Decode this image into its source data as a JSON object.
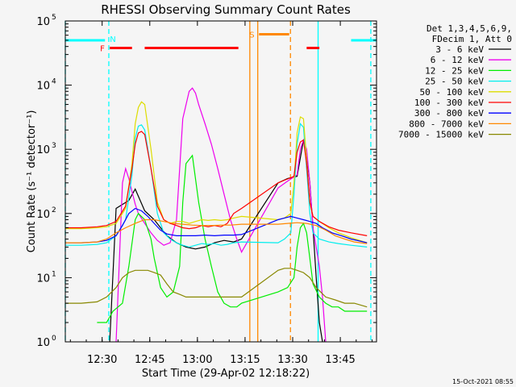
{
  "chart_data": {
    "type": "line",
    "title": "RHESSI Observing Summary Count Rates",
    "xlabel": "Start Time (29-Apr-02 12:18:22)",
    "ylabel": "Count Rate (s⁻¹ detector⁻¹)",
    "x_unit": "minutes after 12:18:22",
    "xlim": [
      0,
      98
    ],
    "ylim": [
      1,
      100000
    ],
    "y_scale": "log",
    "x_ticks": [
      {
        "label": "12:30",
        "t": 11.6
      },
      {
        "label": "12:45",
        "t": 26.6
      },
      {
        "label": "13:00",
        "t": 41.6
      },
      {
        "label": "13:15",
        "t": 56.6
      },
      {
        "label": "13:30",
        "t": 71.6
      },
      {
        "label": "13:45",
        "t": 86.6
      }
    ],
    "y_ticks": [
      {
        "mant": "10",
        "exp": "0",
        "v": 1
      },
      {
        "mant": "10",
        "exp": "1",
        "v": 10
      },
      {
        "mant": "10",
        "exp": "2",
        "v": 100
      },
      {
        "mant": "10",
        "exp": "3",
        "v": 1000
      },
      {
        "mant": "10",
        "exp": "4",
        "v": 10000
      },
      {
        "mant": "10",
        "exp": "5",
        "v": 100000
      }
    ],
    "legend_header": [
      "Det 1,3,4,5,6,9,",
      "FDecim 1, Att 0"
    ],
    "legend_position": "right",
    "series": [
      {
        "name": "3 - 6 keV",
        "color": "#000000",
        "t": [
          0,
          10,
          14,
          16,
          20,
          22,
          25,
          28,
          30,
          32,
          35,
          38,
          41,
          44,
          47,
          50,
          53,
          55.5,
          67,
          70,
          73,
          75,
          76,
          77,
          78,
          79,
          80,
          81,
          82
        ],
        "v": [
          null,
          null,
          1,
          120,
          160,
          240,
          110,
          80,
          60,
          45,
          35,
          30,
          28,
          30,
          35,
          38,
          36,
          40,
          300,
          350,
          380,
          1400,
          800,
          300,
          60,
          10,
          2,
          1,
          null
        ]
      },
      {
        "name": "6 - 12 keV",
        "color": "#ee00ee",
        "t": [
          16,
          18,
          19,
          20,
          21,
          22,
          23,
          25,
          27,
          29,
          31,
          33,
          35,
          37,
          39,
          40,
          41,
          42,
          44,
          46,
          48,
          50,
          52,
          54,
          55.5,
          67,
          70,
          73,
          74,
          75,
          76,
          77,
          78,
          80,
          81,
          82
        ],
        "v": [
          1,
          300,
          500,
          350,
          220,
          140,
          100,
          70,
          50,
          38,
          32,
          35,
          80,
          3000,
          8000,
          9000,
          7500,
          5000,
          2500,
          1200,
          500,
          200,
          80,
          40,
          25,
          250,
          320,
          400,
          1000,
          1400,
          1000,
          300,
          60,
          15,
          5,
          1
        ]
      },
      {
        "name": "12 - 25 keV",
        "color": "#00ee00",
        "t": [
          0,
          10,
          13,
          15,
          18,
          20,
          22,
          23,
          25,
          27,
          28,
          30,
          32,
          34,
          36,
          37,
          38,
          40,
          42,
          44,
          46,
          48,
          50,
          52,
          54,
          55.5,
          67,
          70,
          72,
          73,
          74,
          75,
          76,
          77,
          78,
          80,
          82,
          84,
          86,
          88,
          90,
          92,
          95
        ],
        "v": [
          null,
          2,
          2,
          3,
          4,
          15,
          80,
          100,
          80,
          40,
          20,
          7,
          5,
          6,
          15,
          150,
          600,
          800,
          150,
          40,
          15,
          6,
          4,
          3.5,
          3.5,
          4,
          6,
          7,
          10,
          30,
          60,
          70,
          50,
          20,
          8,
          5,
          4,
          3.5,
          3.5,
          3,
          3,
          3,
          3
        ]
      },
      {
        "name": "25 - 50 keV",
        "color": "#00eeee",
        "t": [
          0,
          5,
          10,
          13,
          16,
          19,
          21,
          22,
          23,
          24,
          25,
          27,
          29,
          31,
          33,
          35,
          37,
          39,
          41,
          43,
          45,
          47,
          49,
          51,
          53,
          55.5,
          67,
          69,
          71,
          72,
          73,
          74,
          75,
          76,
          77,
          78,
          80,
          83,
          86,
          90,
          95
        ],
        "v": [
          32,
          32,
          33,
          35,
          45,
          80,
          400,
          1500,
          2300,
          2400,
          2000,
          500,
          100,
          50,
          40,
          35,
          32,
          30,
          32,
          34,
          33,
          34,
          32,
          33,
          35,
          36,
          35,
          40,
          50,
          200,
          1200,
          2500,
          2200,
          500,
          100,
          50,
          40,
          36,
          34,
          32,
          30
        ]
      },
      {
        "name": "50 - 100 keV",
        "color": "#dddd00",
        "t": [
          0,
          5,
          10,
          13,
          16,
          19,
          21,
          22,
          23,
          24,
          25,
          27,
          29,
          31,
          33,
          35,
          37,
          39,
          41,
          43,
          45,
          47,
          49,
          51,
          53,
          55.5,
          67,
          69,
          71,
          72,
          73,
          74,
          75,
          76,
          77,
          78,
          80,
          83,
          86,
          90,
          95
        ],
        "v": [
          58,
          58,
          60,
          62,
          70,
          120,
          600,
          2500,
          4500,
          5500,
          5000,
          1000,
          150,
          80,
          70,
          75,
          75,
          70,
          75,
          80,
          78,
          80,
          78,
          80,
          85,
          90,
          80,
          85,
          100,
          300,
          1800,
          3200,
          3000,
          700,
          150,
          90,
          75,
          60,
          50,
          42,
          35
        ]
      },
      {
        "name": "100 - 300 keV",
        "color": "#ff0000",
        "t": [
          0,
          5,
          10,
          13,
          16,
          19,
          21,
          22,
          23,
          24,
          25,
          27,
          29,
          31,
          33,
          35,
          37,
          39,
          41,
          43,
          45,
          47,
          49,
          51,
          53,
          55.5,
          67,
          69,
          71,
          72,
          73,
          74,
          75,
          76,
          77,
          78,
          80,
          83,
          86,
          90,
          95
        ],
        "v": [
          60,
          60,
          62,
          65,
          75,
          130,
          500,
          1200,
          1800,
          1900,
          1700,
          500,
          130,
          80,
          70,
          65,
          60,
          58,
          60,
          65,
          62,
          65,
          62,
          70,
          100,
          120,
          300,
          330,
          360,
          380,
          900,
          1300,
          1400,
          600,
          150,
          90,
          75,
          62,
          55,
          50,
          45
        ]
      },
      {
        "name": "300 - 800 keV",
        "color": "#0000ff",
        "t": [
          0,
          5,
          10,
          13,
          16,
          18,
          20,
          22,
          24,
          26,
          28,
          30,
          32,
          35,
          38,
          41,
          44,
          47,
          50,
          53,
          55.5,
          67,
          69,
          71,
          73,
          75,
          77,
          79,
          81,
          84,
          87,
          90,
          95
        ],
        "v": [
          35,
          35,
          36,
          38,
          45,
          65,
          100,
          120,
          110,
          90,
          70,
          55,
          48,
          45,
          45,
          45,
          46,
          45,
          46,
          46,
          47,
          80,
          85,
          90,
          85,
          80,
          75,
          70,
          60,
          50,
          45,
          40,
          35
        ]
      },
      {
        "name": "800 - 7000 keV",
        "color": "#ff8800",
        "t": [
          0,
          5,
          10,
          13,
          16,
          19,
          22,
          25,
          28,
          31,
          34,
          37,
          40,
          43,
          46,
          49,
          52,
          55.5,
          67,
          70,
          73,
          76,
          79,
          82,
          85,
          88,
          91,
          95
        ],
        "v": [
          35,
          35,
          36,
          40,
          50,
          60,
          70,
          80,
          80,
          75,
          70,
          68,
          66,
          65,
          65,
          66,
          66,
          68,
          68,
          70,
          72,
          70,
          65,
          55,
          45,
          40,
          36,
          34
        ]
      },
      {
        "name": "7000 - 15000 keV",
        "color": "#888800",
        "t": [
          0,
          5,
          10,
          13,
          16,
          18,
          20,
          22,
          24,
          26,
          28,
          30,
          32,
          34,
          36,
          38,
          40,
          43,
          46,
          49,
          52,
          55.5,
          67,
          69,
          71,
          73,
          75,
          77,
          79,
          82,
          85,
          88,
          91,
          95
        ],
        "v": [
          4,
          4,
          4.2,
          5,
          7,
          10,
          12,
          13,
          13,
          13,
          12,
          11,
          8,
          6,
          5.5,
          5,
          5,
          5,
          5,
          5,
          5,
          5,
          13,
          14,
          14,
          13,
          12,
          10,
          7,
          5,
          4.5,
          4,
          4,
          3.5
        ]
      }
    ],
    "attenuator_lines": [
      {
        "label": "N",
        "color": "#00ffff",
        "dashed": false,
        "t": [
          0,
          12.5
        ],
        "v": 50000
      },
      {
        "label": "",
        "color": "#00ffff",
        "dashed": false,
        "t": [
          90,
          98
        ],
        "v": 50000
      }
    ],
    "flags": [
      {
        "label": "F",
        "color": "#ff0000",
        "segments": [
          [
            14,
            21
          ],
          [
            25,
            54.5
          ],
          [
            76,
            80
          ]
        ],
        "v": 38000
      },
      {
        "label": "S",
        "color": "#ff8800",
        "segments": [
          [
            61,
            70.5
          ]
        ],
        "v": 62000
      }
    ],
    "vlines": [
      {
        "t": 0,
        "color": "#00ffff",
        "dashed": true
      },
      {
        "t": 13.7,
        "color": "#00ffff",
        "dashed": true
      },
      {
        "t": 58.1,
        "color": "#ff8800",
        "dashed": false
      },
      {
        "t": 60.6,
        "color": "#ff8800",
        "dashed": false
      },
      {
        "t": 70.9,
        "color": "#ff8800",
        "dashed": true
      },
      {
        "t": 79.6,
        "color": "#00ffff",
        "dashed": false
      },
      {
        "t": 96.2,
        "color": "#00ffff",
        "dashed": true
      }
    ],
    "timestamp": "15-Oct-2021 08:55"
  }
}
